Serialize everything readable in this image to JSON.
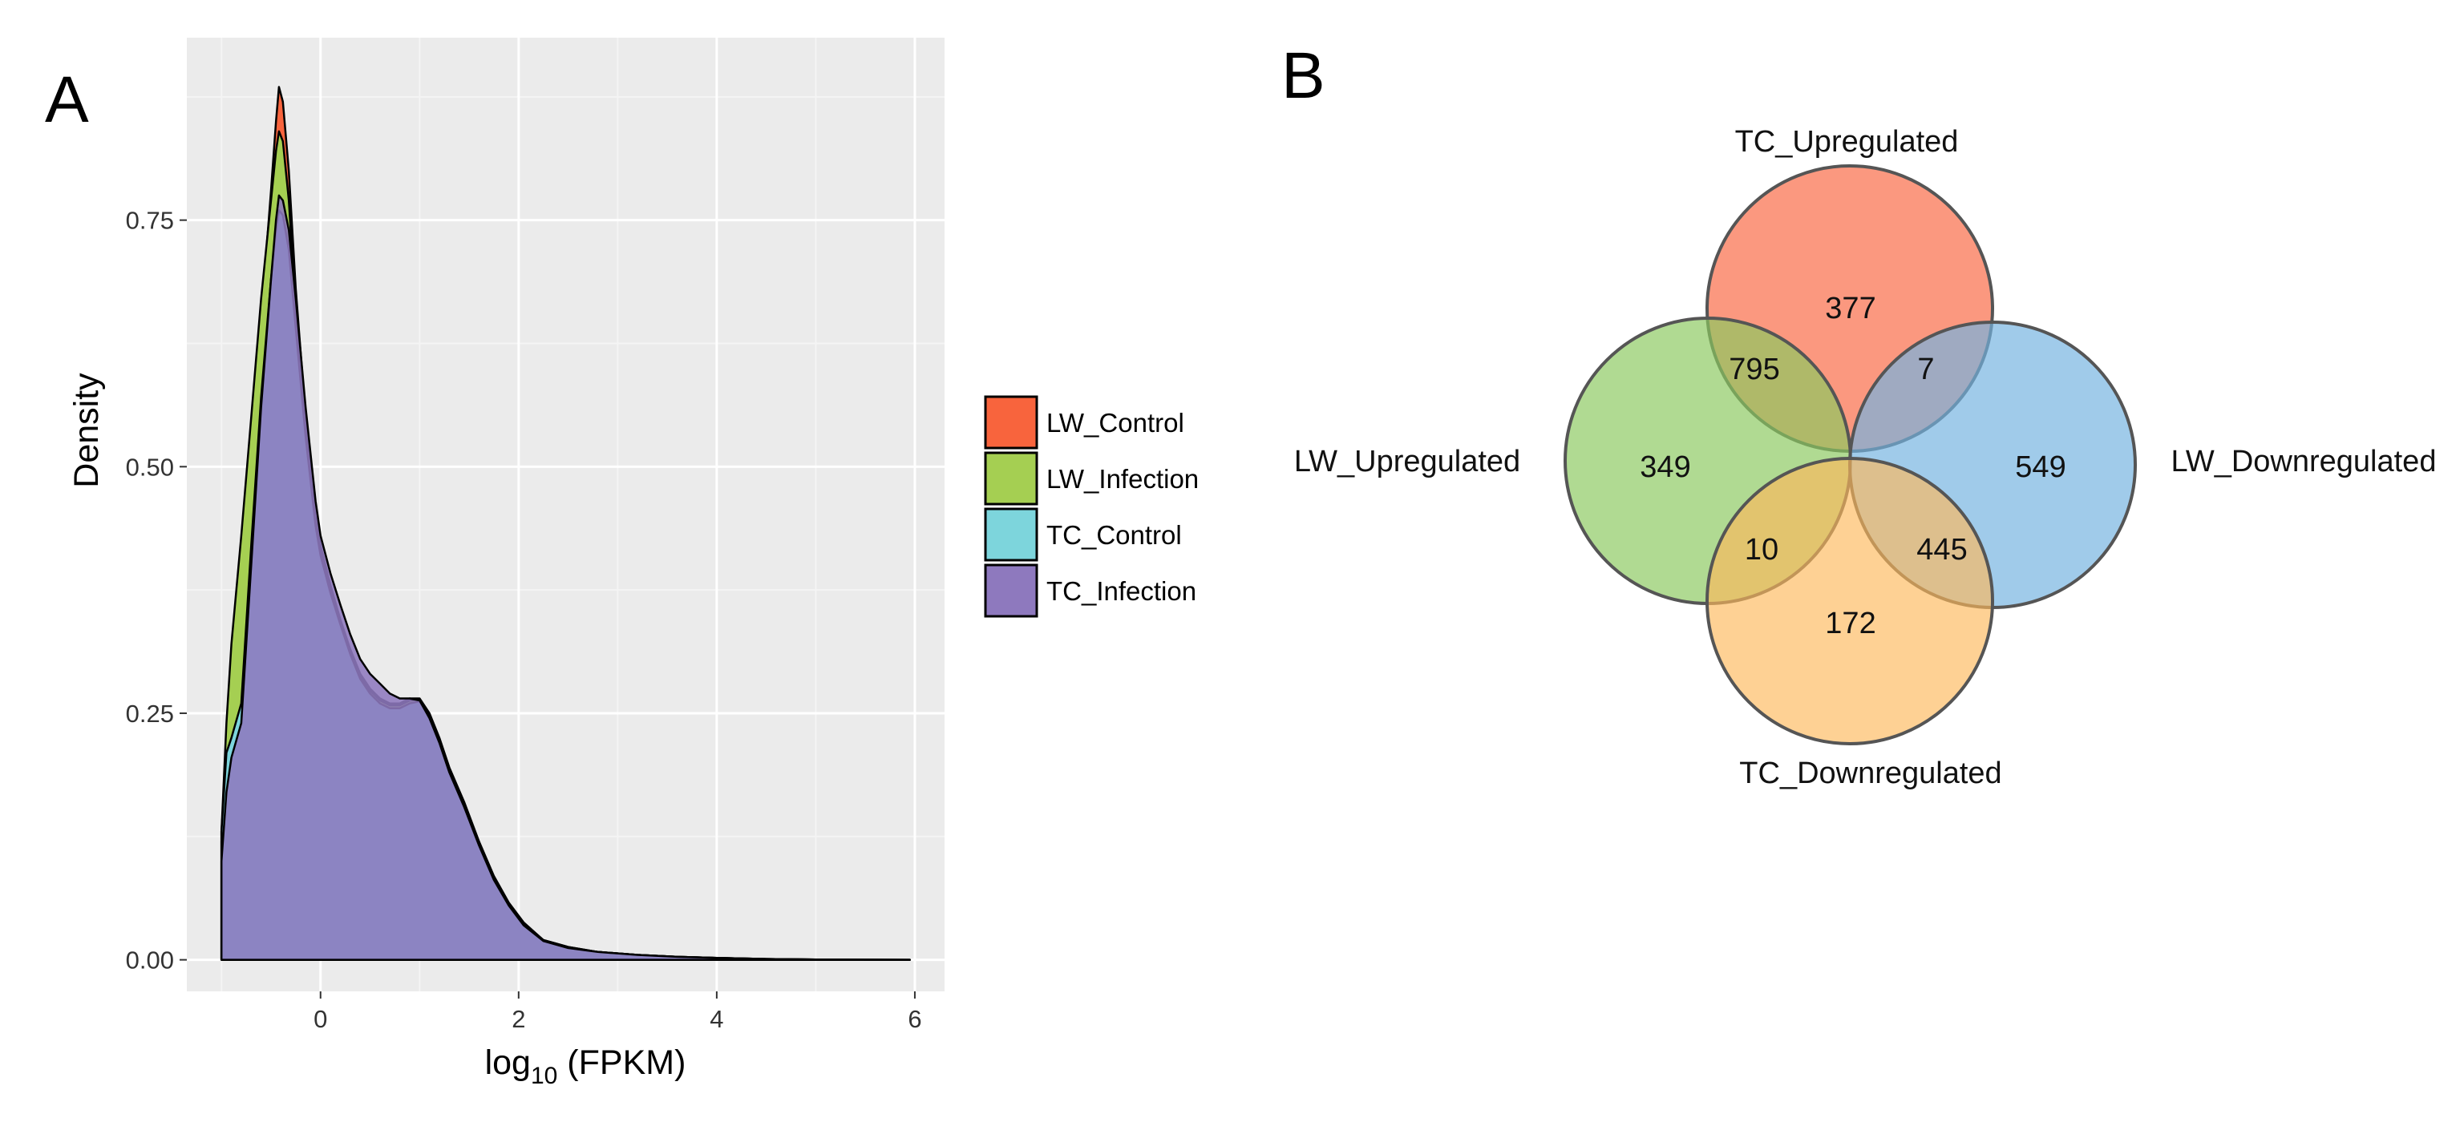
{
  "panel_a_label": "A",
  "panel_b_label": "B",
  "chart_data": [
    {
      "type": "area",
      "title": "",
      "xlabel": "log10 (FPKM)",
      "xlabel_parts": {
        "base": "log",
        "sub": "10",
        "rest": " (FPKM)"
      },
      "ylabel": "Density",
      "xlim": [
        -1.35,
        6.3
      ],
      "ylim": [
        -0.032,
        0.935
      ],
      "x_ticks": [
        0,
        2,
        4,
        6
      ],
      "x_tick_labels": [
        "0",
        "2",
        "4",
        "6"
      ],
      "y_ticks": [
        0,
        0.25,
        0.5,
        0.75
      ],
      "y_tick_labels": [
        "0.00",
        "0.25",
        "0.50",
        "0.75"
      ],
      "grid": true,
      "legend_position": "right",
      "series": [
        {
          "name": "LW_Control",
          "color": "#f8643d",
          "points": [
            [
              -1.0,
              0.0
            ],
            [
              -1.0,
              0.12
            ],
            [
              -0.95,
              0.22
            ],
            [
              -0.9,
              0.3
            ],
            [
              -0.8,
              0.4
            ],
            [
              -0.7,
              0.52
            ],
            [
              -0.6,
              0.65
            ],
            [
              -0.5,
              0.78
            ],
            [
              -0.45,
              0.85
            ],
            [
              -0.42,
              0.885
            ],
            [
              -0.38,
              0.87
            ],
            [
              -0.32,
              0.8
            ],
            [
              -0.25,
              0.68
            ],
            [
              -0.15,
              0.55
            ],
            [
              -0.05,
              0.45
            ],
            [
              0.0,
              0.42
            ],
            [
              0.1,
              0.38
            ],
            [
              0.2,
              0.345
            ],
            [
              0.3,
              0.315
            ],
            [
              0.4,
              0.29
            ],
            [
              0.5,
              0.275
            ],
            [
              0.6,
              0.265
            ],
            [
              0.7,
              0.26
            ],
            [
              0.8,
              0.26
            ],
            [
              0.9,
              0.265
            ],
            [
              1.0,
              0.265
            ],
            [
              1.1,
              0.25
            ],
            [
              1.2,
              0.225
            ],
            [
              1.3,
              0.195
            ],
            [
              1.45,
              0.16
            ],
            [
              1.6,
              0.12
            ],
            [
              1.75,
              0.085
            ],
            [
              1.9,
              0.058
            ],
            [
              2.05,
              0.038
            ],
            [
              2.25,
              0.02
            ],
            [
              2.5,
              0.013
            ],
            [
              2.8,
              0.008
            ],
            [
              3.2,
              0.005
            ],
            [
              3.6,
              0.003
            ],
            [
              4.0,
              0.002
            ],
            [
              4.5,
              0.0008
            ],
            [
              5.0,
              0.0003
            ],
            [
              5.5,
              0.0001
            ],
            [
              5.95,
              0.0
            ]
          ]
        },
        {
          "name": "LW_Infection",
          "color": "#a5cf52",
          "points": [
            [
              -1.0,
              0.0
            ],
            [
              -1.0,
              0.13
            ],
            [
              -0.95,
              0.24
            ],
            [
              -0.9,
              0.32
            ],
            [
              -0.8,
              0.43
            ],
            [
              -0.7,
              0.55
            ],
            [
              -0.6,
              0.67
            ],
            [
              -0.5,
              0.77
            ],
            [
              -0.45,
              0.82
            ],
            [
              -0.42,
              0.84
            ],
            [
              -0.38,
              0.83
            ],
            [
              -0.32,
              0.77
            ],
            [
              -0.25,
              0.66
            ],
            [
              -0.15,
              0.54
            ],
            [
              -0.05,
              0.445
            ],
            [
              0.0,
              0.415
            ],
            [
              0.1,
              0.375
            ],
            [
              0.2,
              0.342
            ],
            [
              0.3,
              0.312
            ],
            [
              0.4,
              0.288
            ],
            [
              0.5,
              0.273
            ],
            [
              0.6,
              0.263
            ],
            [
              0.7,
              0.258
            ],
            [
              0.8,
              0.258
            ],
            [
              0.9,
              0.263
            ],
            [
              1.0,
              0.264
            ],
            [
              1.1,
              0.249
            ],
            [
              1.2,
              0.224
            ],
            [
              1.3,
              0.194
            ],
            [
              1.45,
              0.159
            ],
            [
              1.6,
              0.119
            ],
            [
              1.75,
              0.084
            ],
            [
              1.9,
              0.057
            ],
            [
              2.05,
              0.037
            ],
            [
              2.25,
              0.02
            ],
            [
              2.5,
              0.013
            ],
            [
              2.8,
              0.008
            ],
            [
              3.2,
              0.005
            ],
            [
              3.6,
              0.003
            ],
            [
              4.0,
              0.002
            ],
            [
              4.5,
              0.0008
            ],
            [
              5.0,
              0.0003
            ],
            [
              5.5,
              0.0001
            ],
            [
              5.95,
              0.0
            ]
          ]
        },
        {
          "name": "TC_Control",
          "color": "#7dd5dc",
          "points": [
            [
              -1.0,
              0.0
            ],
            [
              -1.0,
              0.13
            ],
            [
              -0.95,
              0.21
            ],
            [
              -0.9,
              0.225
            ],
            [
              -0.8,
              0.26
            ],
            [
              -0.7,
              0.42
            ],
            [
              -0.6,
              0.57
            ],
            [
              -0.5,
              0.69
            ],
            [
              -0.45,
              0.74
            ],
            [
              -0.42,
              0.76
            ],
            [
              -0.38,
              0.755
            ],
            [
              -0.32,
              0.72
            ],
            [
              -0.25,
              0.64
            ],
            [
              -0.15,
              0.53
            ],
            [
              -0.05,
              0.44
            ],
            [
              0.0,
              0.41
            ],
            [
              0.1,
              0.372
            ],
            [
              0.2,
              0.34
            ],
            [
              0.3,
              0.31
            ],
            [
              0.4,
              0.285
            ],
            [
              0.5,
              0.27
            ],
            [
              0.6,
              0.26
            ],
            [
              0.7,
              0.255
            ],
            [
              0.8,
              0.255
            ],
            [
              0.9,
              0.26
            ],
            [
              1.0,
              0.262
            ],
            [
              1.1,
              0.247
            ],
            [
              1.2,
              0.222
            ],
            [
              1.3,
              0.192
            ],
            [
              1.45,
              0.157
            ],
            [
              1.6,
              0.118
            ],
            [
              1.75,
              0.083
            ],
            [
              1.9,
              0.056
            ],
            [
              2.05,
              0.036
            ],
            [
              2.25,
              0.019
            ],
            [
              2.5,
              0.012
            ],
            [
              2.8,
              0.008
            ],
            [
              3.2,
              0.005
            ],
            [
              3.6,
              0.003
            ],
            [
              4.0,
              0.002
            ],
            [
              4.5,
              0.0008
            ],
            [
              5.0,
              0.0003
            ],
            [
              5.5,
              0.0001
            ],
            [
              5.95,
              0.0
            ]
          ]
        },
        {
          "name": "TC_Infection",
          "color": "#8e79be",
          "points": [
            [
              -1.0,
              0.0
            ],
            [
              -1.0,
              0.1
            ],
            [
              -0.95,
              0.17
            ],
            [
              -0.9,
              0.205
            ],
            [
              -0.8,
              0.24
            ],
            [
              -0.7,
              0.4
            ],
            [
              -0.6,
              0.56
            ],
            [
              -0.5,
              0.69
            ],
            [
              -0.45,
              0.75
            ],
            [
              -0.42,
              0.775
            ],
            [
              -0.38,
              0.77
            ],
            [
              -0.32,
              0.74
            ],
            [
              -0.25,
              0.67
            ],
            [
              -0.15,
              0.56
            ],
            [
              -0.05,
              0.465
            ],
            [
              0.0,
              0.43
            ],
            [
              0.1,
              0.392
            ],
            [
              0.2,
              0.36
            ],
            [
              0.3,
              0.33
            ],
            [
              0.4,
              0.305
            ],
            [
              0.5,
              0.29
            ],
            [
              0.6,
              0.28
            ],
            [
              0.7,
              0.27
            ],
            [
              0.8,
              0.265
            ],
            [
              0.9,
              0.265
            ],
            [
              1.0,
              0.263
            ],
            [
              1.1,
              0.245
            ],
            [
              1.2,
              0.22
            ],
            [
              1.3,
              0.19
            ],
            [
              1.45,
              0.155
            ],
            [
              1.6,
              0.116
            ],
            [
              1.75,
              0.081
            ],
            [
              1.9,
              0.055
            ],
            [
              2.05,
              0.035
            ],
            [
              2.25,
              0.019
            ],
            [
              2.5,
              0.012
            ],
            [
              2.8,
              0.008
            ],
            [
              3.2,
              0.005
            ],
            [
              3.6,
              0.003
            ],
            [
              4.0,
              0.002
            ],
            [
              4.5,
              0.0008
            ],
            [
              5.0,
              0.0003
            ],
            [
              5.5,
              0.0001
            ],
            [
              5.95,
              0.0
            ]
          ]
        }
      ]
    },
    {
      "type": "venn",
      "sets": [
        {
          "name": "TC_Upregulated",
          "color": "#f9704e",
          "position": "top"
        },
        {
          "name": "LW_Upregulated",
          "color": "#8ac95f",
          "position": "left"
        },
        {
          "name": "LW_Downregulated",
          "color": "#73b3e0",
          "position": "right"
        },
        {
          "name": "TC_Downregulated",
          "color": "#fdb85a",
          "position": "bottom"
        }
      ],
      "regions": [
        {
          "sets": [
            "TC_Upregulated"
          ],
          "value": "377"
        },
        {
          "sets": [
            "TC_Upregulated",
            "LW_Upregulated"
          ],
          "value": "795"
        },
        {
          "sets": [
            "TC_Upregulated",
            "LW_Downregulated"
          ],
          "value": "7"
        },
        {
          "sets": [
            "LW_Upregulated"
          ],
          "value": "349"
        },
        {
          "sets": [
            "LW_Downregulated"
          ],
          "value": "549"
        },
        {
          "sets": [
            "LW_Upregulated",
            "TC_Downregulated"
          ],
          "value": "10"
        },
        {
          "sets": [
            "LW_Downregulated",
            "TC_Downregulated"
          ],
          "value": "445"
        },
        {
          "sets": [
            "TC_Downregulated"
          ],
          "value": "172"
        }
      ]
    }
  ]
}
